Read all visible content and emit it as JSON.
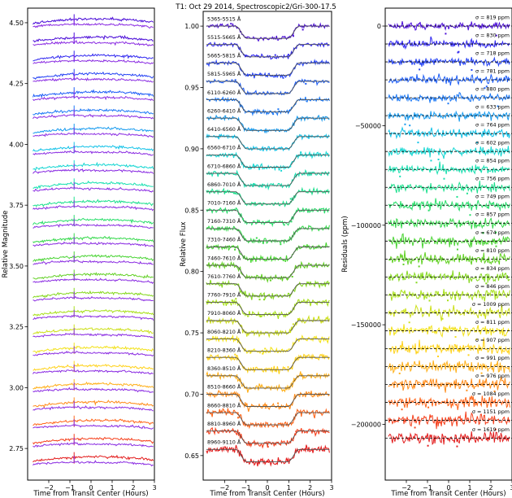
{
  "chart_data": [
    {
      "type": "line",
      "panel": "left",
      "ylabel": "Relative Magnitude",
      "xlabel": "Time from Transit Center (Hours)",
      "xlim": [
        -3.0,
        3.0
      ],
      "ylim": [
        2.62,
        4.56
      ],
      "xticks": [
        -2,
        -1,
        0,
        1,
        2,
        3
      ],
      "xtick_labels": [
        "−2",
        "−1",
        "0",
        "1",
        "2",
        "3"
      ],
      "yticks": [
        2.75,
        3.0,
        3.25,
        3.5,
        3.75,
        4.0,
        4.25,
        4.5
      ],
      "ytick_labels": [
        "2.75",
        "3.00",
        "3.25",
        "3.50",
        "3.75",
        "4.00",
        "4.25",
        "4.50"
      ],
      "series_offsets": [
        4.5,
        4.425,
        4.35,
        4.275,
        4.2,
        4.125,
        4.05,
        3.975,
        3.9,
        3.825,
        3.75,
        3.675,
        3.6,
        3.525,
        3.45,
        3.375,
        3.3,
        3.225,
        3.15,
        3.075,
        3.0,
        2.925,
        2.85,
        2.775,
        2.7
      ]
    },
    {
      "type": "line",
      "panel": "middle",
      "title": "T1: Oct 29 2014, Spectroscopic2/Gri-300-17.5",
      "ylabel": "Relative Flux",
      "xlabel": "Time from Transit Center (Hours)",
      "xlim": [
        -3.0,
        3.0
      ],
      "ylim": [
        0.63,
        1.012
      ],
      "xticks": [
        -2,
        -1,
        0,
        1,
        2,
        3
      ],
      "xtick_labels": [
        "−2",
        "−1",
        "0",
        "1",
        "2",
        "3"
      ],
      "yticks": [
        0.65,
        0.7,
        0.75,
        0.8,
        0.85,
        0.9,
        0.95,
        1.0
      ],
      "ytick_labels": [
        "0.65",
        "0.70",
        "0.75",
        "0.80",
        "0.85",
        "0.90",
        "0.95",
        "1.00"
      ],
      "transit": {
        "ingress_start": -1.5,
        "ingress_end": -0.95,
        "egress_start": 0.95,
        "egress_end": 1.5,
        "depth": 0.01
      },
      "series": [
        {
          "name": "5365-5515 Å",
          "baseline": 1.0
        },
        {
          "name": "5515-5665 Å",
          "baseline": 0.985
        },
        {
          "name": "5665-5815 Å",
          "baseline": 0.97
        },
        {
          "name": "5815-5965 Å",
          "baseline": 0.955
        },
        {
          "name": "6110-6260 Å",
          "baseline": 0.94
        },
        {
          "name": "6260-6410 Å",
          "baseline": 0.925
        },
        {
          "name": "6410-6560 Å",
          "baseline": 0.91
        },
        {
          "name": "6560-6710 Å",
          "baseline": 0.895
        },
        {
          "name": "6710-6860 Å",
          "baseline": 0.88
        },
        {
          "name": "6860-7010 Å",
          "baseline": 0.865
        },
        {
          "name": "7010-7160 Å",
          "baseline": 0.85
        },
        {
          "name": "7160-7310 Å",
          "baseline": 0.835
        },
        {
          "name": "7310-7460 Å",
          "baseline": 0.82
        },
        {
          "name": "7460-7610 Å",
          "baseline": 0.805
        },
        {
          "name": "7610-7760 Å",
          "baseline": 0.79
        },
        {
          "name": "7760-7910 Å",
          "baseline": 0.775
        },
        {
          "name": "7910-8060 Å",
          "baseline": 0.76
        },
        {
          "name": "8060-8210 Å",
          "baseline": 0.745
        },
        {
          "name": "8210-8360 Å",
          "baseline": 0.73
        },
        {
          "name": "8360-8510 Å",
          "baseline": 0.715
        },
        {
          "name": "8510-8660 Å",
          "baseline": 0.7
        },
        {
          "name": "8660-8810 Å",
          "baseline": 0.685
        },
        {
          "name": "8810-8960 Å",
          "baseline": 0.67
        },
        {
          "name": "8960-9110 Å",
          "baseline": 0.655
        }
      ]
    },
    {
      "type": "scatter",
      "panel": "right",
      "ylabel": "Residuals (ppm)",
      "xlabel": "Time from Transit Center (Hours)",
      "xlim": [
        -3.0,
        3.0
      ],
      "ylim": [
        -228000,
        9000
      ],
      "xticks": [
        -2,
        -1,
        0,
        1,
        2,
        3
      ],
      "xtick_labels": [
        "−2",
        "−1",
        "0",
        "1",
        "2",
        "3"
      ],
      "yticks": [
        0,
        -50000,
        -100000,
        -150000,
        -200000
      ],
      "ytick_labels": [
        "0",
        "−50000",
        "−100000",
        "−150000",
        "−200000"
      ],
      "offset_step_ppm": -9000,
      "sigma_labels": [
        "σ = 819 ppm",
        "σ = 830 ppm",
        "σ = 718 ppm",
        "σ = 781 ppm",
        "σ = 880 ppm",
        "σ = 633 ppm",
        "σ = 764 ppm",
        "σ = 602 ppm",
        "σ = 854 ppm",
        "σ = 756 ppm",
        "σ = 749 ppm",
        "σ = 857 ppm",
        "σ = 674 ppm",
        "σ = 810 ppm",
        "σ = 834 ppm",
        "σ = 846 ppm",
        "σ = 1009 ppm",
        "σ = 811 ppm",
        "σ = 907 ppm",
        "σ = 991 ppm",
        "σ = 976 ppm",
        "σ = 1084 ppm",
        "σ = 1151 ppm",
        "σ = 1619 ppm"
      ]
    }
  ],
  "colors": {
    "rainbow": [
      "#4b0dd8",
      "#2f26f0",
      "#2442f4",
      "#1e5ef7",
      "#1a78f6",
      "#159aef",
      "#12c2e8",
      "#14d6d2",
      "#17e0b0",
      "#1de08e",
      "#28de6a",
      "#36d94c",
      "#4ad434",
      "#62d024",
      "#85d81e",
      "#a8e01a",
      "#cde01a",
      "#f2e11a",
      "#ffd21a",
      "#ffb01a",
      "#ff8c1a",
      "#ff661a",
      "#f5401c",
      "#e31e1e"
    ],
    "comparison": "#8a2be2"
  }
}
